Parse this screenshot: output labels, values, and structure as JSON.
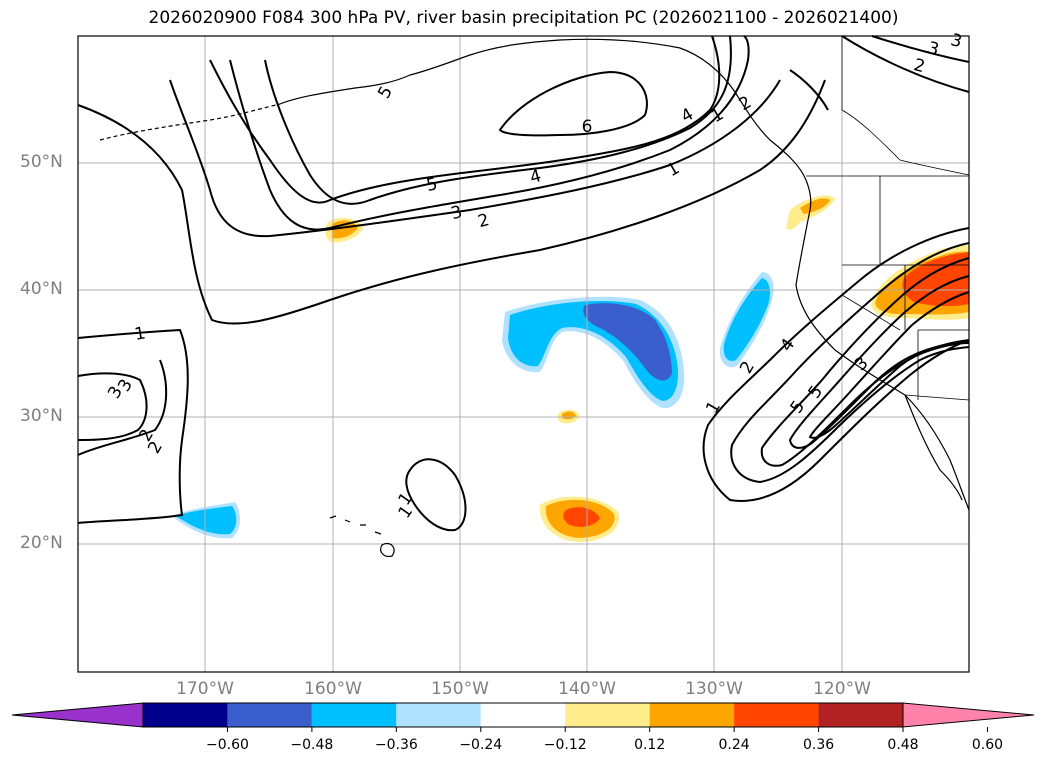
{
  "title": "2026020900 F084 300 hPa PV, river basin precipitation PC (2026021100 - 2026021400)",
  "map": {
    "lat_labels": [
      "50°N",
      "40°N",
      "30°N",
      "20°N"
    ],
    "lon_labels": [
      "170°W",
      "160°W",
      "150°W",
      "140°W",
      "130°W",
      "120°W"
    ],
    "pv_contour_labels": [
      "1",
      "2",
      "3",
      "4",
      "5",
      "6",
      "1",
      "2",
      "3",
      "4",
      "5",
      "1",
      "2",
      "3",
      "1",
      "2",
      "3",
      "5",
      "1",
      "2",
      "3",
      "4",
      "5",
      "2",
      "3",
      "1"
    ]
  },
  "colorbar": {
    "ticks": [
      "−0.60",
      "−0.48",
      "−0.36",
      "−0.24",
      "−0.12",
      "0.12",
      "0.24",
      "0.36",
      "0.48",
      "0.60"
    ],
    "colors": [
      "#9932cc",
      "#00008b",
      "#3a5fcd",
      "#00bfff",
      "#b0e2ff",
      "#ffffff",
      "#ffec8b",
      "#ffa500",
      "#ff4500",
      "#b22222",
      "#ff82ab"
    ]
  },
  "colors": {
    "neg_dark": "#3a5fcd",
    "neg_mid": "#00bfff",
    "neg_light": "#b0e2ff",
    "pos_light": "#ffec8b",
    "pos_mid": "#ffa500",
    "pos_strong": "#ff4500"
  }
}
